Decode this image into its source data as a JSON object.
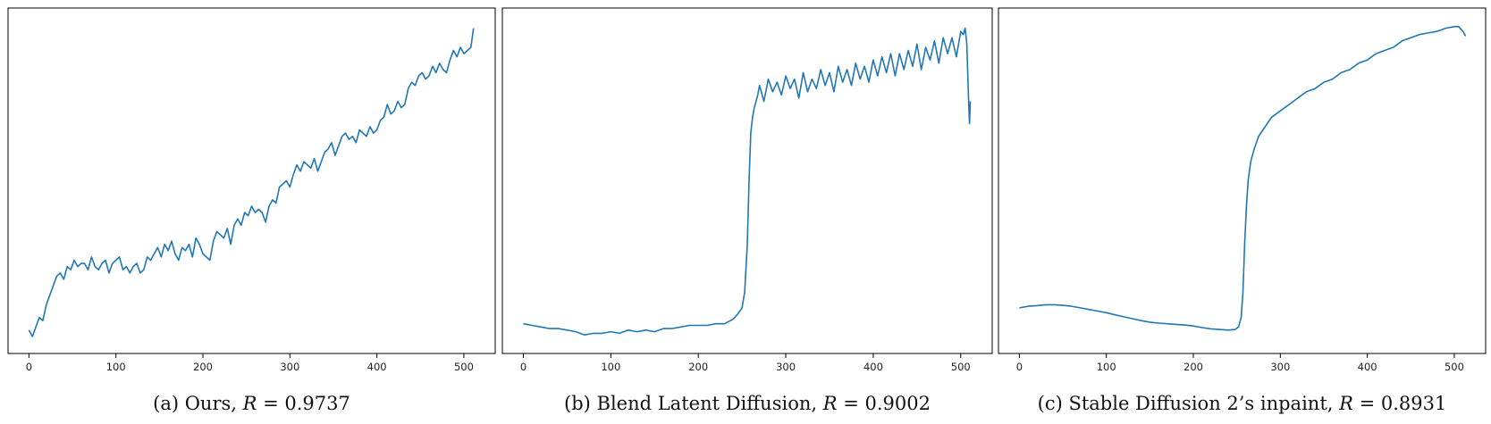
{
  "colors": {
    "series": "#1f77b4",
    "axis": "#000000"
  },
  "chart_data": [
    {
      "type": "line",
      "caption_prefix": "(a) Ours, ",
      "caption_var": "R",
      "caption_suffix": " = 0.9737",
      "xlim": [
        -24,
        536
      ],
      "ylim": [
        0,
        1
      ],
      "xticks": [
        0,
        100,
        200,
        300,
        400,
        500
      ],
      "grid": false,
      "series": [
        {
          "x": [
            0,
            4,
            8,
            12,
            16,
            20,
            24,
            28,
            32,
            36,
            40,
            44,
            48,
            52,
            56,
            60,
            64,
            68,
            72,
            76,
            80,
            84,
            88,
            92,
            96,
            100,
            104,
            108,
            112,
            116,
            120,
            124,
            128,
            132,
            136,
            140,
            144,
            148,
            152,
            156,
            160,
            164,
            168,
            172,
            176,
            180,
            184,
            188,
            192,
            196,
            200,
            204,
            208,
            212,
            216,
            220,
            224,
            228,
            232,
            236,
            240,
            244,
            248,
            252,
            256,
            260,
            264,
            268,
            272,
            276,
            280,
            284,
            288,
            292,
            296,
            300,
            304,
            308,
            312,
            316,
            320,
            324,
            328,
            332,
            336,
            340,
            344,
            348,
            352,
            356,
            360,
            364,
            368,
            372,
            376,
            380,
            384,
            388,
            392,
            396,
            400,
            404,
            408,
            412,
            416,
            420,
            424,
            428,
            432,
            436,
            440,
            444,
            448,
            452,
            456,
            460,
            464,
            468,
            472,
            476,
            480,
            484,
            488,
            492,
            496,
            500,
            504,
            508,
            511
          ],
          "y": [
            0.03,
            0.01,
            0.04,
            0.07,
            0.06,
            0.11,
            0.14,
            0.17,
            0.2,
            0.21,
            0.19,
            0.23,
            0.22,
            0.25,
            0.23,
            0.24,
            0.24,
            0.22,
            0.26,
            0.23,
            0.22,
            0.24,
            0.25,
            0.21,
            0.24,
            0.25,
            0.26,
            0.22,
            0.23,
            0.21,
            0.23,
            0.24,
            0.21,
            0.22,
            0.26,
            0.25,
            0.27,
            0.29,
            0.26,
            0.3,
            0.28,
            0.31,
            0.27,
            0.25,
            0.29,
            0.28,
            0.3,
            0.26,
            0.32,
            0.3,
            0.27,
            0.26,
            0.25,
            0.31,
            0.34,
            0.33,
            0.32,
            0.35,
            0.3,
            0.36,
            0.38,
            0.36,
            0.4,
            0.39,
            0.42,
            0.4,
            0.41,
            0.4,
            0.37,
            0.42,
            0.44,
            0.43,
            0.48,
            0.49,
            0.5,
            0.48,
            0.52,
            0.55,
            0.53,
            0.56,
            0.55,
            0.54,
            0.57,
            0.53,
            0.56,
            0.59,
            0.6,
            0.62,
            0.58,
            0.61,
            0.64,
            0.65,
            0.63,
            0.64,
            0.62,
            0.66,
            0.65,
            0.64,
            0.67,
            0.65,
            0.66,
            0.69,
            0.7,
            0.74,
            0.71,
            0.72,
            0.75,
            0.73,
            0.74,
            0.79,
            0.81,
            0.8,
            0.83,
            0.84,
            0.82,
            0.83,
            0.86,
            0.84,
            0.87,
            0.85,
            0.84,
            0.88,
            0.91,
            0.89,
            0.92,
            0.9,
            0.91,
            0.92,
            0.98
          ]
        }
      ]
    },
    {
      "type": "line",
      "caption_prefix": "(b) Blend Latent Diffusion, ",
      "caption_var": "R",
      "caption_suffix": " = 0.9002",
      "xlim": [
        -24,
        536
      ],
      "ylim": [
        0,
        1
      ],
      "xticks": [
        0,
        100,
        200,
        300,
        400,
        500
      ],
      "grid": false,
      "series": [
        {
          "x": [
            0,
            10,
            20,
            30,
            40,
            50,
            60,
            70,
            80,
            90,
            100,
            110,
            120,
            130,
            140,
            150,
            160,
            170,
            180,
            190,
            200,
            210,
            220,
            230,
            240,
            245,
            250,
            253,
            256,
            258,
            260,
            262,
            264,
            266,
            268,
            270,
            275,
            280,
            285,
            290,
            295,
            300,
            305,
            310,
            315,
            320,
            325,
            330,
            335,
            340,
            345,
            350,
            355,
            360,
            365,
            370,
            375,
            380,
            385,
            390,
            395,
            400,
            405,
            410,
            415,
            420,
            425,
            430,
            435,
            440,
            445,
            450,
            455,
            460,
            465,
            470,
            475,
            480,
            485,
            490,
            495,
            500,
            503,
            505,
            507,
            509,
            510,
            511
          ],
          "y": [
            0.05,
            0.045,
            0.04,
            0.035,
            0.035,
            0.03,
            0.025,
            0.015,
            0.02,
            0.02,
            0.025,
            0.02,
            0.03,
            0.025,
            0.03,
            0.025,
            0.035,
            0.035,
            0.04,
            0.045,
            0.045,
            0.045,
            0.05,
            0.05,
            0.065,
            0.08,
            0.1,
            0.15,
            0.3,
            0.5,
            0.65,
            0.7,
            0.73,
            0.75,
            0.77,
            0.8,
            0.75,
            0.82,
            0.78,
            0.81,
            0.77,
            0.83,
            0.79,
            0.82,
            0.76,
            0.84,
            0.78,
            0.82,
            0.79,
            0.85,
            0.8,
            0.84,
            0.78,
            0.86,
            0.81,
            0.85,
            0.8,
            0.87,
            0.82,
            0.86,
            0.81,
            0.88,
            0.83,
            0.89,
            0.84,
            0.9,
            0.83,
            0.9,
            0.85,
            0.91,
            0.86,
            0.93,
            0.85,
            0.92,
            0.88,
            0.94,
            0.87,
            0.95,
            0.9,
            0.95,
            0.89,
            0.97,
            0.96,
            0.98,
            0.93,
            0.75,
            0.68,
            0.75
          ]
        }
      ]
    },
    {
      "type": "line",
      "caption_prefix": "(c) Stable Diffusion 2’s inpaint, ",
      "caption_var": "R",
      "caption_suffix": " = 0.8931",
      "xlim": [
        -24,
        536
      ],
      "ylim": [
        0,
        1
      ],
      "xticks": [
        0,
        100,
        200,
        300,
        400,
        500
      ],
      "grid": false,
      "series": [
        {
          "x": [
            0,
            10,
            20,
            30,
            40,
            50,
            60,
            70,
            80,
            90,
            100,
            110,
            120,
            130,
            140,
            150,
            160,
            170,
            180,
            190,
            200,
            210,
            220,
            230,
            240,
            248,
            252,
            255,
            257,
            259,
            261,
            263,
            266,
            270,
            275,
            280,
            290,
            300,
            310,
            320,
            330,
            340,
            350,
            360,
            370,
            380,
            390,
            400,
            410,
            420,
            430,
            440,
            450,
            460,
            470,
            480,
            490,
            500,
            505,
            510,
            513
          ],
          "y": [
            0.1,
            0.105,
            0.107,
            0.11,
            0.11,
            0.108,
            0.105,
            0.1,
            0.095,
            0.09,
            0.085,
            0.078,
            0.072,
            0.066,
            0.06,
            0.055,
            0.052,
            0.05,
            0.048,
            0.046,
            0.043,
            0.038,
            0.034,
            0.032,
            0.03,
            0.032,
            0.04,
            0.07,
            0.15,
            0.3,
            0.42,
            0.5,
            0.56,
            0.6,
            0.64,
            0.66,
            0.7,
            0.72,
            0.74,
            0.76,
            0.78,
            0.79,
            0.81,
            0.82,
            0.84,
            0.85,
            0.87,
            0.88,
            0.9,
            0.91,
            0.92,
            0.94,
            0.95,
            0.96,
            0.965,
            0.97,
            0.98,
            0.985,
            0.985,
            0.97,
            0.955
          ]
        }
      ]
    }
  ]
}
